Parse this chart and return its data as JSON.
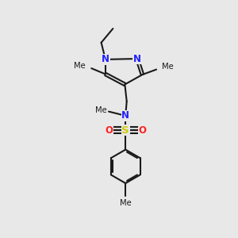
{
  "background_color": "#e8e8e8",
  "bond_color": "#1a1a1a",
  "nitrogen_color": "#2020ff",
  "sulfur_color": "#cccc00",
  "oxygen_color": "#ff2020",
  "line_width": 1.5,
  "figsize": [
    3.0,
    3.0
  ],
  "dpi": 100,
  "xlim": [
    0,
    10
  ],
  "ylim": [
    0,
    10
  ]
}
